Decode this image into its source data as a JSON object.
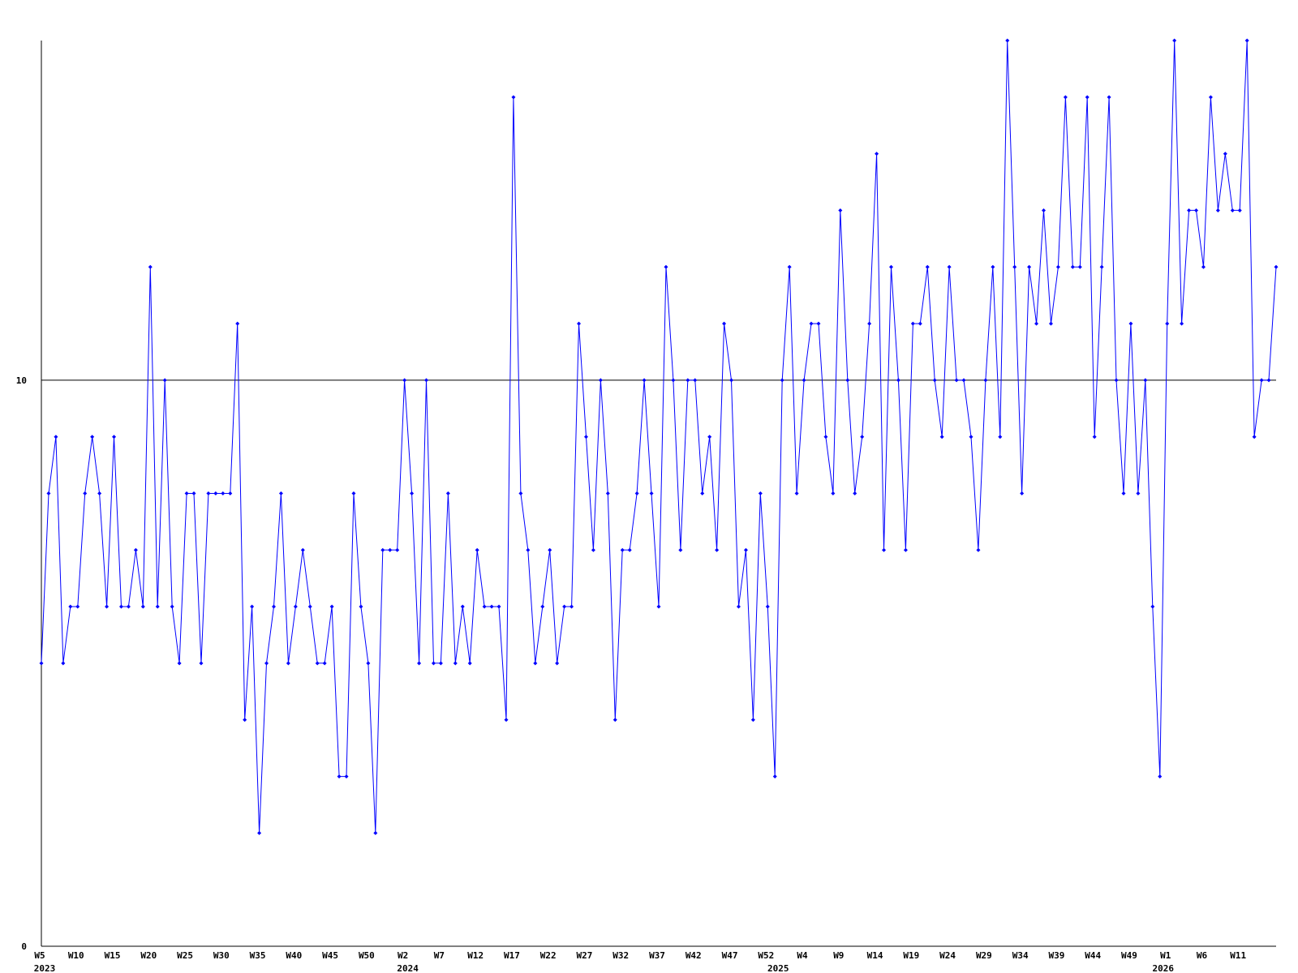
{
  "chart_data": {
    "type": "line",
    "categories": [
      "W5",
      null,
      null,
      null,
      null,
      "W10",
      null,
      null,
      null,
      null,
      "W15",
      null,
      null,
      null,
      null,
      "W20",
      null,
      null,
      null,
      null,
      "W25",
      null,
      null,
      null,
      null,
      "W30",
      null,
      null,
      null,
      null,
      "W35",
      null,
      null,
      null,
      null,
      "W40",
      null,
      null,
      null,
      null,
      "W45",
      null,
      null,
      null,
      null,
      "W50",
      null,
      null,
      null,
      null,
      "W2",
      null,
      null,
      null,
      null,
      "W7",
      null,
      null,
      null,
      null,
      "W12",
      null,
      null,
      null,
      null,
      "W17",
      null,
      null,
      null,
      null,
      "W22",
      null,
      null,
      null,
      null,
      "W27",
      null,
      null,
      null,
      null,
      "W32",
      null,
      null,
      null,
      null,
      "W37",
      null,
      null,
      null,
      null,
      "W42",
      null,
      null,
      null,
      null,
      "W47",
      null,
      null,
      null,
      null,
      "W52",
      null,
      null,
      null,
      null,
      "W4",
      null,
      null,
      null,
      null,
      "W9",
      null,
      null,
      null,
      null,
      "W14",
      null,
      null,
      null,
      null,
      "W19",
      null,
      null,
      null,
      null,
      "W24",
      null,
      null,
      null,
      null,
      "W29",
      null,
      null,
      null,
      null,
      "W34",
      null,
      null,
      null,
      null,
      "W39",
      null,
      null,
      null,
      null,
      "W44",
      null,
      null,
      null,
      null,
      "W49",
      null,
      null,
      null,
      null,
      "W1",
      null,
      null,
      null,
      null,
      "W6",
      null,
      null,
      null,
      null,
      "W11",
      null,
      null,
      null,
      null,
      null
    ],
    "years": [
      "2023",
      null,
      null,
      null,
      null,
      null,
      null,
      null,
      null,
      null,
      null,
      null,
      null,
      null,
      null,
      null,
      null,
      null,
      null,
      null,
      null,
      null,
      null,
      null,
      null,
      null,
      null,
      null,
      null,
      null,
      null,
      null,
      null,
      null,
      null,
      null,
      null,
      null,
      null,
      null,
      null,
      null,
      null,
      null,
      null,
      null,
      null,
      null,
      null,
      null,
      "2024",
      null,
      null,
      null,
      null,
      null,
      null,
      null,
      null,
      null,
      null,
      null,
      null,
      null,
      null,
      null,
      null,
      null,
      null,
      null,
      null,
      null,
      null,
      null,
      null,
      null,
      null,
      null,
      null,
      null,
      null,
      null,
      null,
      null,
      null,
      null,
      null,
      null,
      null,
      null,
      null,
      null,
      null,
      null,
      null,
      null,
      null,
      null,
      null,
      null,
      null,
      "2025",
      null,
      null,
      null,
      null,
      null,
      null,
      null,
      null,
      null,
      null,
      null,
      null,
      null,
      null,
      null,
      null,
      null,
      null,
      null,
      null,
      null,
      null,
      null,
      null,
      null,
      null,
      null,
      null,
      null,
      null,
      null,
      null,
      null,
      null,
      null,
      null,
      null,
      null,
      null,
      null,
      null,
      null,
      null,
      null,
      null,
      null,
      null,
      null,
      null,
      null,
      null,
      null,
      "2026",
      null,
      null,
      null,
      null,
      null,
      null,
      null,
      null,
      null,
      null,
      null,
      null,
      null,
      null,
      null
    ],
    "series": [
      {
        "color": "#0000ff",
        "values": [
          5,
          8,
          9,
          5,
          6,
          6,
          8,
          9,
          8,
          6,
          9,
          6,
          6,
          7,
          6,
          12,
          6,
          10,
          6,
          5,
          8,
          8,
          5,
          8,
          8,
          8,
          8,
          11,
          4,
          6,
          2,
          5,
          6,
          8,
          5,
          6,
          7,
          6,
          5,
          5,
          6,
          3,
          3,
          8,
          6,
          5,
          2,
          7,
          7,
          7,
          10,
          8,
          5,
          10,
          5,
          5,
          8,
          5,
          6,
          5,
          7,
          6,
          6,
          6,
          4,
          15,
          8,
          7,
          5,
          6,
          7,
          5,
          6,
          6,
          11,
          9,
          7,
          10,
          8,
          4,
          7,
          7,
          8,
          10,
          8,
          6,
          12,
          10,
          7,
          10,
          10,
          8,
          9,
          7,
          11,
          10,
          6,
          7,
          4,
          8,
          6,
          3,
          10,
          12,
          8,
          10,
          11,
          11,
          9,
          8,
          13,
          10,
          8,
          9,
          11,
          14,
          7,
          12,
          10,
          7,
          11,
          11,
          12,
          10,
          9,
          12,
          10,
          10,
          9,
          7,
          10,
          12,
          9,
          16,
          12,
          8,
          12,
          11,
          13,
          11,
          12,
          15,
          12,
          12,
          15,
          9,
          12,
          15,
          10,
          8,
          11,
          8,
          10,
          6,
          3,
          11,
          16,
          11,
          13,
          13,
          12,
          15,
          13,
          14,
          13,
          13,
          16,
          9,
          10,
          10,
          12
        ]
      }
    ],
    "ylim": [
      0,
      16
    ],
    "yticks": [
      0,
      10
    ],
    "grid": true
  }
}
